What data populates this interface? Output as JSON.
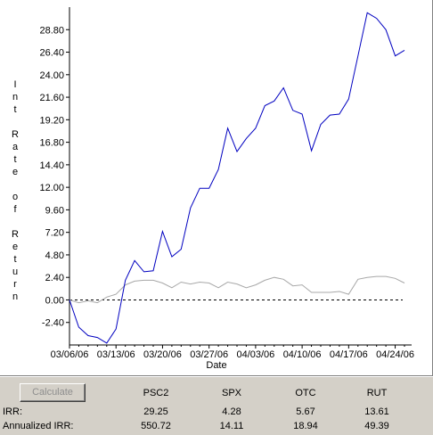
{
  "chart_data": {
    "type": "line",
    "ylabel": "Int Rate of Return",
    "xlabel": "Date",
    "y_ticks": [
      "28.80",
      "26.40",
      "24.00",
      "21.60",
      "19.20",
      "16.80",
      "14.40",
      "12.00",
      "9.60",
      "7.20",
      "4.80",
      "2.40",
      "0.00",
      "-2.40"
    ],
    "x_ticks": [
      "03/06/06",
      "03/13/06",
      "03/20/06",
      "03/27/06",
      "04/03/06",
      "04/10/06",
      "04/17/06",
      "04/24/06"
    ],
    "ylim": [
      -4.8,
      31.2
    ],
    "zero_line": "dashed",
    "series": [
      {
        "color": "#0000c0",
        "values": [
          0.0,
          -2.9,
          -3.8,
          -4.0,
          -4.6,
          -3.1,
          2.1,
          4.2,
          3.0,
          3.1,
          7.3,
          4.6,
          5.4,
          9.8,
          11.9,
          11.9,
          13.9,
          18.3,
          15.8,
          17.2,
          18.3,
          20.7,
          21.2,
          22.6,
          20.2,
          19.8,
          15.9,
          18.7,
          19.7,
          19.8,
          21.4,
          26.0,
          30.6,
          30.0,
          28.8,
          26.0,
          26.6
        ]
      },
      {
        "color": "#a8a8a8",
        "values": [
          0.0,
          -0.3,
          -0.1,
          -0.3,
          0.3,
          0.6,
          1.6,
          2.0,
          2.1,
          2.1,
          1.8,
          1.3,
          1.9,
          1.7,
          1.9,
          1.8,
          1.3,
          1.9,
          1.7,
          1.3,
          1.6,
          2.1,
          2.4,
          2.2,
          1.5,
          1.6,
          0.8,
          0.8,
          0.8,
          0.9,
          0.6,
          2.2,
          2.4,
          2.5,
          2.5,
          2.3,
          1.8
        ]
      }
    ]
  },
  "bottom": {
    "calculate_label": "Calculate",
    "columns": [
      "PSC2",
      "SPX",
      "OTC",
      "RUT"
    ],
    "rows": [
      {
        "label": "IRR:",
        "values": [
          "29.25",
          "4.28",
          "5.67",
          "13.61"
        ]
      },
      {
        "label": "Annualized IRR:",
        "values": [
          "550.72",
          "14.11",
          "18.94",
          "49.39"
        ]
      }
    ]
  }
}
